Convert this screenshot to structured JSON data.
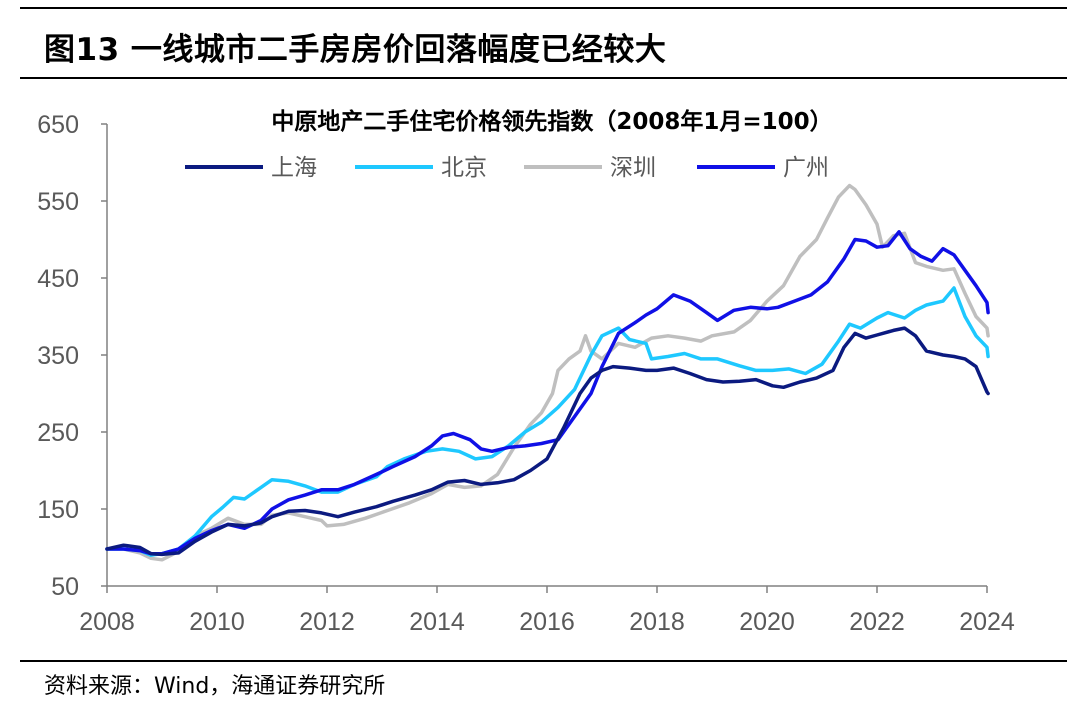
{
  "figure": {
    "title": "图13 一线城市二手房房价回落幅度已经较大",
    "source": "资料来源：Wind，海通证券研究所"
  },
  "chart_data": {
    "type": "line",
    "title": "中原地产二手住宅价格领先指数（2008年1月=100）",
    "xlabel": "",
    "ylabel": "",
    "xlim": [
      2008,
      2024
    ],
    "ylim": [
      50,
      650
    ],
    "x_ticks": [
      "2008",
      "2010",
      "2012",
      "2014",
      "2016",
      "2018",
      "2020",
      "2022",
      "2024"
    ],
    "y_ticks": [
      "50",
      "150",
      "250",
      "350",
      "450",
      "550",
      "650"
    ],
    "legend_position": "top",
    "grid": false,
    "series": [
      {
        "name": "上海",
        "color": "#0b1a80",
        "points": [
          [
            2008,
            98
          ],
          [
            2008.3,
            103
          ],
          [
            2008.6,
            100
          ],
          [
            2008.8,
            92
          ],
          [
            2009.0,
            91
          ],
          [
            2009.3,
            93
          ],
          [
            2009.6,
            108
          ],
          [
            2009.9,
            120
          ],
          [
            2010.2,
            130
          ],
          [
            2010.5,
            128
          ],
          [
            2010.8,
            132
          ],
          [
            2011.0,
            140
          ],
          [
            2011.3,
            147
          ],
          [
            2011.6,
            148
          ],
          [
            2011.9,
            145
          ],
          [
            2012.2,
            140
          ],
          [
            2012.5,
            146
          ],
          [
            2012.9,
            153
          ],
          [
            2013.2,
            160
          ],
          [
            2013.6,
            168
          ],
          [
            2013.9,
            175
          ],
          [
            2014.2,
            185
          ],
          [
            2014.5,
            187
          ],
          [
            2014.8,
            182
          ],
          [
            2015.1,
            184
          ],
          [
            2015.4,
            188
          ],
          [
            2015.7,
            200
          ],
          [
            2016.0,
            215
          ],
          [
            2016.3,
            255
          ],
          [
            2016.6,
            300
          ],
          [
            2016.8,
            320
          ],
          [
            2017.0,
            330
          ],
          [
            2017.2,
            335
          ],
          [
            2017.5,
            333
          ],
          [
            2017.8,
            330
          ],
          [
            2018.0,
            330
          ],
          [
            2018.3,
            333
          ],
          [
            2018.6,
            326
          ],
          [
            2018.9,
            318
          ],
          [
            2019.2,
            315
          ],
          [
            2019.5,
            316
          ],
          [
            2019.8,
            318
          ],
          [
            2020.1,
            310
          ],
          [
            2020.3,
            308
          ],
          [
            2020.6,
            315
          ],
          [
            2020.9,
            320
          ],
          [
            2021.2,
            330
          ],
          [
            2021.4,
            360
          ],
          [
            2021.6,
            378
          ],
          [
            2021.8,
            372
          ],
          [
            2022.0,
            376
          ],
          [
            2022.3,
            382
          ],
          [
            2022.5,
            385
          ],
          [
            2022.7,
            375
          ],
          [
            2022.9,
            355
          ],
          [
            2023.2,
            350
          ],
          [
            2023.4,
            348
          ],
          [
            2023.6,
            345
          ],
          [
            2023.8,
            335
          ],
          [
            2024.0,
            302
          ],
          [
            2024.02,
            300
          ]
        ]
      },
      {
        "name": "北京",
        "color": "#1ec8ff",
        "points": [
          [
            2008,
            98
          ],
          [
            2008.3,
            98
          ],
          [
            2008.6,
            96
          ],
          [
            2008.8,
            90
          ],
          [
            2009.0,
            92
          ],
          [
            2009.3,
            98
          ],
          [
            2009.6,
            115
          ],
          [
            2009.9,
            140
          ],
          [
            2010.1,
            152
          ],
          [
            2010.3,
            165
          ],
          [
            2010.5,
            163
          ],
          [
            2010.8,
            178
          ],
          [
            2011.0,
            188
          ],
          [
            2011.3,
            186
          ],
          [
            2011.6,
            180
          ],
          [
            2011.9,
            172
          ],
          [
            2012.2,
            172
          ],
          [
            2012.5,
            182
          ],
          [
            2012.9,
            192
          ],
          [
            2013.1,
            205
          ],
          [
            2013.4,
            215
          ],
          [
            2013.8,
            225
          ],
          [
            2014.1,
            228
          ],
          [
            2014.4,
            225
          ],
          [
            2014.7,
            215
          ],
          [
            2015.0,
            218
          ],
          [
            2015.3,
            232
          ],
          [
            2015.6,
            250
          ],
          [
            2015.9,
            263
          ],
          [
            2016.2,
            282
          ],
          [
            2016.5,
            305
          ],
          [
            2016.8,
            350
          ],
          [
            2017.0,
            375
          ],
          [
            2017.3,
            385
          ],
          [
            2017.5,
            370
          ],
          [
            2017.8,
            365
          ],
          [
            2017.9,
            345
          ],
          [
            2018.2,
            348
          ],
          [
            2018.5,
            352
          ],
          [
            2018.8,
            345
          ],
          [
            2019.1,
            345
          ],
          [
            2019.5,
            336
          ],
          [
            2019.8,
            330
          ],
          [
            2020.1,
            330
          ],
          [
            2020.4,
            332
          ],
          [
            2020.7,
            326
          ],
          [
            2021.0,
            338
          ],
          [
            2021.3,
            368
          ],
          [
            2021.5,
            390
          ],
          [
            2021.7,
            385
          ],
          [
            2022.0,
            398
          ],
          [
            2022.2,
            405
          ],
          [
            2022.5,
            398
          ],
          [
            2022.7,
            408
          ],
          [
            2022.9,
            415
          ],
          [
            2023.2,
            420
          ],
          [
            2023.4,
            437
          ],
          [
            2023.6,
            400
          ],
          [
            2023.8,
            375
          ],
          [
            2024.0,
            360
          ],
          [
            2024.02,
            348
          ]
        ]
      },
      {
        "name": "深圳",
        "color": "#bfbfbf",
        "points": [
          [
            2008,
            98
          ],
          [
            2008.3,
            98
          ],
          [
            2008.6,
            93
          ],
          [
            2008.8,
            86
          ],
          [
            2009.0,
            84
          ],
          [
            2009.3,
            95
          ],
          [
            2009.6,
            115
          ],
          [
            2009.9,
            125
          ],
          [
            2010.2,
            138
          ],
          [
            2010.5,
            130
          ],
          [
            2010.8,
            130
          ],
          [
            2011.0,
            142
          ],
          [
            2011.3,
            145
          ],
          [
            2011.6,
            140
          ],
          [
            2011.9,
            135
          ],
          [
            2012.0,
            128
          ],
          [
            2012.3,
            130
          ],
          [
            2012.7,
            138
          ],
          [
            2013.1,
            148
          ],
          [
            2013.5,
            158
          ],
          [
            2013.9,
            170
          ],
          [
            2014.2,
            182
          ],
          [
            2014.5,
            178
          ],
          [
            2014.8,
            180
          ],
          [
            2015.1,
            195
          ],
          [
            2015.4,
            230
          ],
          [
            2015.7,
            260
          ],
          [
            2015.9,
            275
          ],
          [
            2016.1,
            300
          ],
          [
            2016.2,
            330
          ],
          [
            2016.4,
            345
          ],
          [
            2016.6,
            355
          ],
          [
            2016.7,
            375
          ],
          [
            2016.8,
            355
          ],
          [
            2017.0,
            345
          ],
          [
            2017.3,
            365
          ],
          [
            2017.6,
            360
          ],
          [
            2017.9,
            372
          ],
          [
            2018.2,
            375
          ],
          [
            2018.5,
            372
          ],
          [
            2018.8,
            368
          ],
          [
            2019.0,
            375
          ],
          [
            2019.4,
            380
          ],
          [
            2019.7,
            395
          ],
          [
            2020.0,
            420
          ],
          [
            2020.3,
            440
          ],
          [
            2020.6,
            478
          ],
          [
            2020.9,
            500
          ],
          [
            2021.1,
            528
          ],
          [
            2021.3,
            555
          ],
          [
            2021.5,
            570
          ],
          [
            2021.6,
            565
          ],
          [
            2021.8,
            545
          ],
          [
            2022.0,
            520
          ],
          [
            2022.1,
            490
          ],
          [
            2022.3,
            505
          ],
          [
            2022.5,
            508
          ],
          [
            2022.7,
            470
          ],
          [
            2022.9,
            465
          ],
          [
            2023.2,
            460
          ],
          [
            2023.4,
            462
          ],
          [
            2023.6,
            430
          ],
          [
            2023.8,
            400
          ],
          [
            2024.0,
            385
          ],
          [
            2024.02,
            375
          ]
        ]
      },
      {
        "name": "广州",
        "color": "#1010e6",
        "points": [
          [
            2008,
            98
          ],
          [
            2008.3,
            98
          ],
          [
            2008.6,
            96
          ],
          [
            2008.8,
            92
          ],
          [
            2009.0,
            92
          ],
          [
            2009.3,
            98
          ],
          [
            2009.6,
            112
          ],
          [
            2009.9,
            122
          ],
          [
            2010.2,
            130
          ],
          [
            2010.5,
            125
          ],
          [
            2010.8,
            135
          ],
          [
            2011.0,
            150
          ],
          [
            2011.3,
            162
          ],
          [
            2011.6,
            168
          ],
          [
            2011.9,
            175
          ],
          [
            2012.2,
            175
          ],
          [
            2012.5,
            182
          ],
          [
            2012.9,
            195
          ],
          [
            2013.2,
            205
          ],
          [
            2013.6,
            218
          ],
          [
            2013.9,
            232
          ],
          [
            2014.1,
            245
          ],
          [
            2014.3,
            248
          ],
          [
            2014.6,
            240
          ],
          [
            2014.8,
            228
          ],
          [
            2015.0,
            225
          ],
          [
            2015.3,
            230
          ],
          [
            2015.6,
            232
          ],
          [
            2015.9,
            235
          ],
          [
            2016.2,
            240
          ],
          [
            2016.5,
            270
          ],
          [
            2016.8,
            300
          ],
          [
            2017.0,
            335
          ],
          [
            2017.3,
            378
          ],
          [
            2017.6,
            392
          ],
          [
            2017.8,
            402
          ],
          [
            2018.0,
            410
          ],
          [
            2018.3,
            428
          ],
          [
            2018.6,
            420
          ],
          [
            2018.9,
            405
          ],
          [
            2019.1,
            395
          ],
          [
            2019.4,
            408
          ],
          [
            2019.7,
            412
          ],
          [
            2020.0,
            410
          ],
          [
            2020.2,
            412
          ],
          [
            2020.5,
            420
          ],
          [
            2020.8,
            428
          ],
          [
            2021.1,
            445
          ],
          [
            2021.4,
            475
          ],
          [
            2021.6,
            500
          ],
          [
            2021.8,
            498
          ],
          [
            2022.0,
            490
          ],
          [
            2022.2,
            492
          ],
          [
            2022.4,
            510
          ],
          [
            2022.6,
            488
          ],
          [
            2022.8,
            478
          ],
          [
            2023.0,
            472
          ],
          [
            2023.2,
            488
          ],
          [
            2023.4,
            480
          ],
          [
            2023.6,
            460
          ],
          [
            2023.8,
            440
          ],
          [
            2024.0,
            418
          ],
          [
            2024.02,
            405
          ]
        ]
      }
    ]
  }
}
